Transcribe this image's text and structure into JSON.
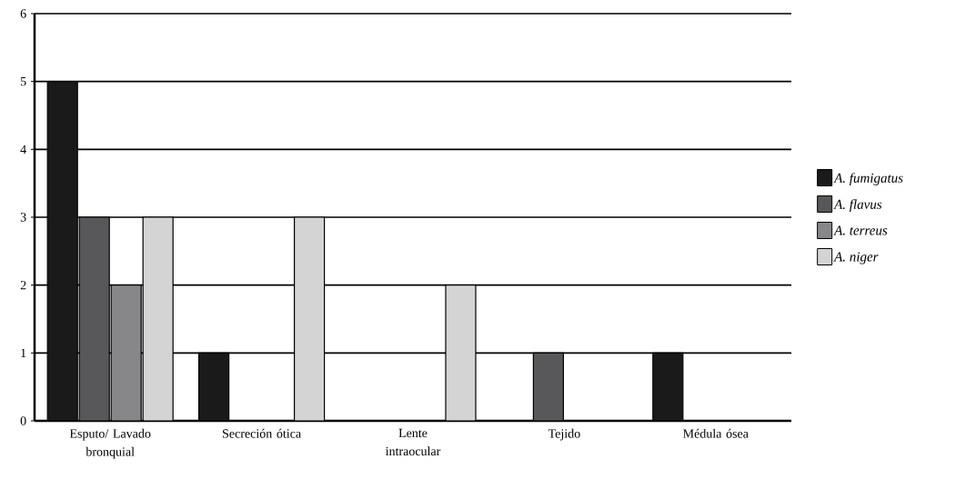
{
  "chart_data": {
    "type": "bar",
    "categories": [
      "Esputo/ Lavado bronquial",
      "Secreción ótica",
      "Lente intraocular",
      "Tejido",
      "Médula ósea"
    ],
    "series": [
      {
        "name": "A. fumigatus",
        "color": "#1a1a1a",
        "values": [
          5,
          1,
          0,
          0,
          1
        ]
      },
      {
        "name": "A. flavus",
        "color": "#58585a",
        "values": [
          3,
          0,
          0,
          1,
          0
        ]
      },
      {
        "name": "A. terreus",
        "color": "#87878a",
        "values": [
          2,
          0,
          0,
          0,
          0
        ]
      },
      {
        "name": "A. niger",
        "color": "#d4d4d4",
        "values": [
          3,
          3,
          2,
          0,
          0
        ]
      }
    ],
    "ylim": [
      0,
      6
    ],
    "yticks": [
      0,
      1,
      2,
      3,
      4,
      5,
      6
    ],
    "grid": "y",
    "legend": "right"
  }
}
